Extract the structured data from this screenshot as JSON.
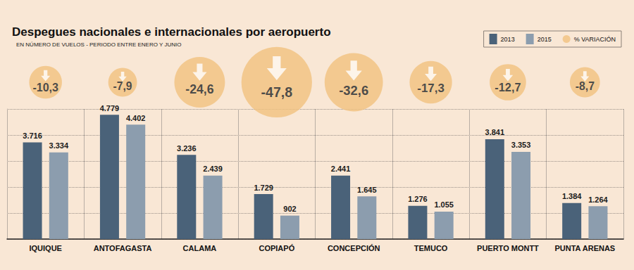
{
  "chart_data": {
    "type": "bar",
    "title": "Despegues nacionales e internacionales por aeropuerto",
    "subtitle": "EN NÚMERO DE VUELOS - PERIODO ENTRE ENERO Y JUNIO",
    "categories": [
      "IQUIQUE",
      "ANTOFAGASTA",
      "CALAMA",
      "COPIAPÓ",
      "CONCEPCIÓN",
      "TEMUCO",
      "PUERTO MONTT",
      "PUNTA ARENAS"
    ],
    "series": [
      {
        "name": "2013",
        "color": "#4a6279",
        "values": [
          3716,
          4779,
          3236,
          1729,
          2441,
          1276,
          3841,
          1384
        ],
        "value_labels": [
          "3.716",
          "4.779",
          "3.236",
          "1.729",
          "2.441",
          "1.276",
          "3.841",
          "1.384"
        ]
      },
      {
        "name": "2015",
        "color": "#8c9dae",
        "values": [
          3334,
          4402,
          2439,
          902,
          1645,
          1055,
          3353,
          1264
        ],
        "value_labels": [
          "3.334",
          "4.402",
          "2.439",
          "902",
          "1.645",
          "1.055",
          "3.353",
          "1.264"
        ]
      }
    ],
    "variation": {
      "name": "% VARIACIÓN",
      "color": "#f1c27e",
      "values": [
        -10.3,
        -7.9,
        -24.6,
        -47.8,
        -32.6,
        -17.3,
        -12.7,
        -8.7
      ],
      "value_labels": [
        "-10,3",
        "-7,9",
        "-24,6",
        "-47,8",
        "-32,6",
        "-17,3",
        "-12,7",
        "-8,7"
      ]
    },
    "ylim": [
      0,
      5000
    ],
    "yticks": [
      0,
      1000,
      2000,
      3000,
      4000,
      5000
    ],
    "grid": true,
    "tick_labels": "x",
    "data_labels": true,
    "legend": "upper right"
  }
}
